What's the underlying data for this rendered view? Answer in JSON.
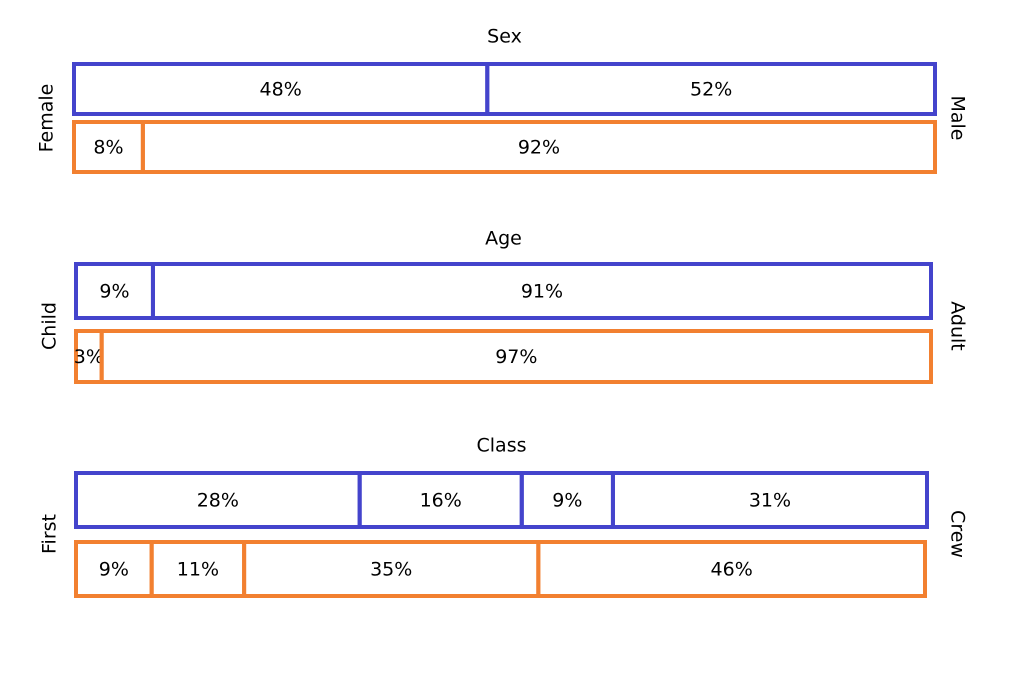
{
  "chart_data": [
    {
      "type": "stacked-bar",
      "title": "Sex",
      "left_label": "Female",
      "right_label": "Male",
      "series": [
        {
          "color": "#4444cc",
          "values": [
            48,
            52
          ],
          "value_labels": [
            "48%",
            "52%"
          ]
        },
        {
          "color": "#f28030",
          "values": [
            8,
            92
          ],
          "value_labels": [
            "8%",
            "92%"
          ]
        }
      ]
    },
    {
      "type": "stacked-bar",
      "title": "Age",
      "left_label": "Child",
      "right_label": "Adult",
      "series": [
        {
          "color": "#4444cc",
          "values": [
            9,
            91
          ],
          "value_labels": [
            "9%",
            "91%"
          ]
        },
        {
          "color": "#f28030",
          "values": [
            3,
            97
          ],
          "value_labels": [
            "3%",
            "97%"
          ]
        }
      ]
    },
    {
      "type": "stacked-bar",
      "title": "Class",
      "left_label": "First",
      "right_label": "Crew",
      "series": [
        {
          "color": "#4444cc",
          "values": [
            28,
            16,
            9,
            31
          ],
          "value_labels": [
            "28%",
            "16%",
            "9%",
            "31%"
          ]
        },
        {
          "color": "#f28030",
          "values": [
            9,
            11,
            35,
            46
          ],
          "value_labels": [
            "9%",
            "11%",
            "35%",
            "46%"
          ]
        }
      ]
    }
  ]
}
